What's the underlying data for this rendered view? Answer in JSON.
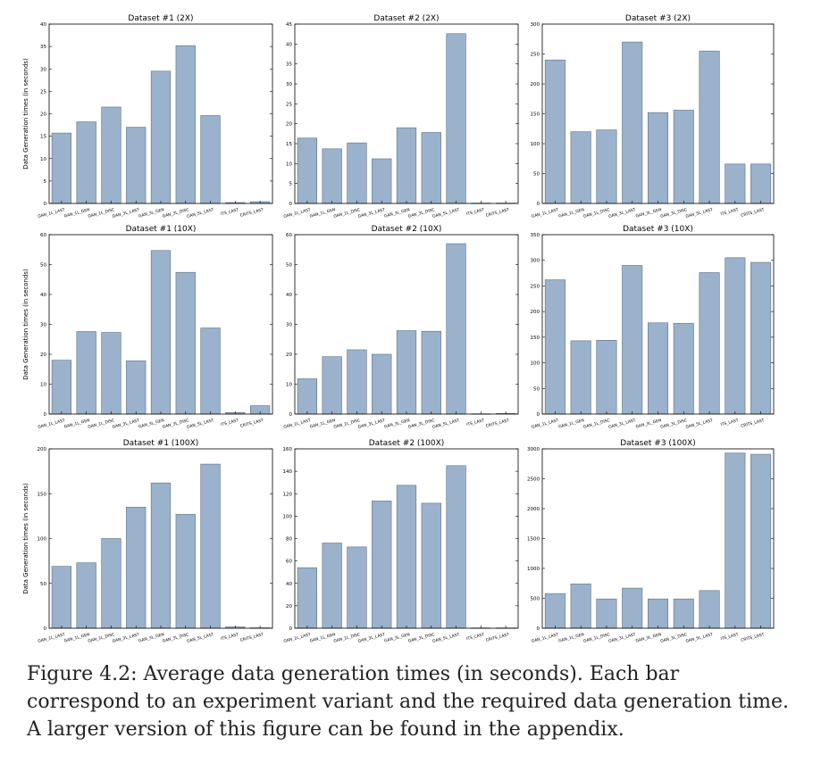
{
  "figure": {
    "caption": "Figure 4.2: Average data generation times (in seconds). Each bar correspond to an experiment variant and the required data generation time. A larger version of this figure can be found in the appendix."
  },
  "colors": {
    "bar": "#9bb2cc",
    "bar_edge": "#5f6f80",
    "axis": "#000000"
  },
  "chart_data": [
    {
      "type": "bar",
      "title": "Dataset #1 (2X)",
      "ylabel": "Data Generation times (in seconds)",
      "ylim": [
        0,
        40
      ],
      "yticks": [
        0,
        5,
        10,
        15,
        20,
        25,
        30,
        35,
        40
      ],
      "categories": [
        "GAN_1L_LAST",
        "GAN_1L_GEN",
        "GAN_1L_DISC",
        "GAN_3L_LAST",
        "GAN_3L_GEN",
        "GAN_3L_DISC",
        "GAN_5L_LAST",
        "ITS_LAST",
        "CRITS_LAST"
      ],
      "values": [
        15.7,
        18.2,
        21.5,
        17.0,
        29.5,
        35.2,
        19.6,
        0.2,
        0.4
      ]
    },
    {
      "type": "bar",
      "title": "Dataset #2 (2X)",
      "ylabel": "",
      "ylim": [
        0,
        45
      ],
      "yticks": [
        0,
        5,
        10,
        15,
        20,
        25,
        30,
        35,
        40,
        45
      ],
      "categories": [
        "GAN_1L_LAST",
        "GAN_1L_GEN",
        "GAN_1L_DISC",
        "GAN_3L_LAST",
        "GAN_3L_GEN",
        "GAN_3L_DISC",
        "GAN_5L_LAST",
        "ITS_LAST",
        "CRITS_LAST"
      ],
      "values": [
        16.4,
        13.7,
        15.2,
        11.2,
        19.0,
        17.8,
        42.6,
        0.1,
        0.1
      ]
    },
    {
      "type": "bar",
      "title": "Dataset #3 (2X)",
      "ylabel": "",
      "ylim": [
        0,
        300
      ],
      "yticks": [
        0,
        50,
        100,
        150,
        200,
        250,
        300
      ],
      "categories": [
        "GAN_1L_LAST",
        "GAN_1L_GEN",
        "GAN_1L_DISC",
        "GAN_3L_LAST",
        "GAN_3L_GEN",
        "GAN_3L_DISC",
        "GAN_5L_LAST",
        "ITS_LAST",
        "CRITS_LAST"
      ],
      "values": [
        240,
        120,
        123,
        270,
        152,
        156,
        255,
        66,
        66
      ]
    },
    {
      "type": "bar",
      "title": "Dataset #1 (10X)",
      "ylabel": "Data Generation times (in seconds)",
      "ylim": [
        0,
        60
      ],
      "yticks": [
        0,
        10,
        20,
        30,
        40,
        50,
        60
      ],
      "categories": [
        "GAN_1L_LAST",
        "GAN_1L_GEN",
        "GAN_1L_DISC",
        "GAN_3L_LAST",
        "GAN_3L_GEN",
        "GAN_3L_DISC",
        "GAN_5L_LAST",
        "ITS_LAST",
        "CRITS_LAST"
      ],
      "values": [
        18.0,
        27.6,
        27.3,
        17.8,
        54.7,
        47.4,
        28.8,
        0.5,
        2.8
      ]
    },
    {
      "type": "bar",
      "title": "Dataset #2 (10X)",
      "ylabel": "",
      "ylim": [
        0,
        60
      ],
      "yticks": [
        0,
        10,
        20,
        30,
        40,
        50,
        60
      ],
      "categories": [
        "GAN_1L_LAST",
        "GAN_1L_GEN",
        "GAN_1L_DISC",
        "GAN_3L_LAST",
        "GAN_3L_GEN",
        "GAN_3L_DISC",
        "GAN_5L_LAST",
        "ITS_LAST",
        "CRITS_LAST"
      ],
      "values": [
        11.8,
        19.2,
        21.5,
        20.0,
        27.9,
        27.7,
        57.0,
        0.1,
        0.2
      ]
    },
    {
      "type": "bar",
      "title": "Dataset #3 (10X)",
      "ylabel": "",
      "ylim": [
        0,
        350
      ],
      "yticks": [
        0,
        50,
        100,
        150,
        200,
        250,
        300,
        350
      ],
      "categories": [
        "GAN_1L_LAST",
        "GAN_1L_GEN",
        "GAN_1L_DISC",
        "GAN_3L_LAST",
        "GAN_3L_GEN",
        "GAN_3L_DISC",
        "GAN_5L_LAST",
        "ITS_LAST",
        "CRITS_LAST"
      ],
      "values": [
        262,
        143,
        144,
        290,
        178,
        177,
        276,
        305,
        296
      ]
    },
    {
      "type": "bar",
      "title": "Dataset #1 (100X)",
      "ylabel": "Data Generation times (in seconds)",
      "ylim": [
        0,
        200
      ],
      "yticks": [
        0,
        50,
        100,
        150,
        200
      ],
      "categories": [
        "GAN_1L_LAST",
        "GAN_1L_GEN",
        "GAN_1L_DISC",
        "GAN_3L_LAST",
        "GAN_3L_GEN",
        "GAN_3L_DISC",
        "GAN_5L_LAST",
        "ITS_LAST",
        "CRITS_LAST"
      ],
      "values": [
        69,
        73,
        100,
        135,
        162,
        127,
        183,
        1.5,
        0.5
      ]
    },
    {
      "type": "bar",
      "title": "Dataset #2 (100X)",
      "ylabel": "",
      "ylim": [
        0,
        160
      ],
      "yticks": [
        0,
        20,
        40,
        60,
        80,
        100,
        120,
        140,
        160
      ],
      "categories": [
        "GAN_1L_LAST",
        "GAN_1L_GEN",
        "GAN_1L_DISC",
        "GAN_3L_LAST",
        "GAN_3L_GEN",
        "GAN_3L_DISC",
        "GAN_5L_LAST",
        "ITS_LAST",
        "CRITS_LAST"
      ],
      "values": [
        54,
        76,
        72.5,
        113.5,
        127.5,
        111.5,
        145,
        0.3,
        0.3
      ]
    },
    {
      "type": "bar",
      "title": "Dataset #3 (100X)",
      "ylabel": "",
      "ylim": [
        0,
        3000
      ],
      "yticks": [
        0,
        500,
        1000,
        1500,
        2000,
        2500,
        3000
      ],
      "categories": [
        "GAN_1L_LAST",
        "GAN_1L_GEN",
        "GAN_1L_DISC",
        "GAN_3L_LAST",
        "GAN_3L_GEN",
        "GAN_3L_DISC",
        "GAN_5L_LAST",
        "ITS_LAST",
        "CRITS_LAST"
      ],
      "values": [
        580,
        740,
        490,
        670,
        490,
        490,
        630,
        2930,
        2910
      ]
    }
  ]
}
